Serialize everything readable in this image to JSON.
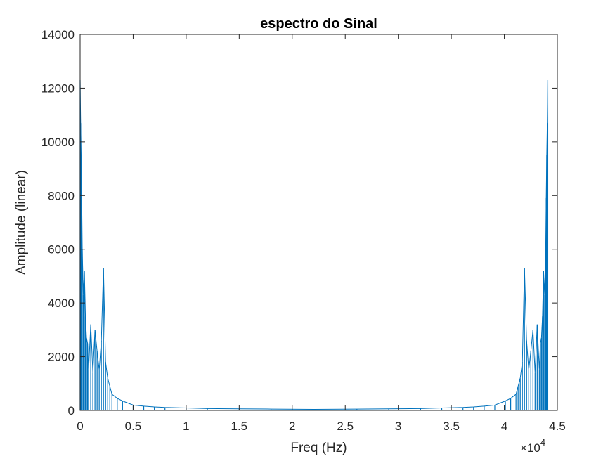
{
  "chart_data": {
    "type": "line",
    "title": "espectro do Sinal",
    "xlabel": "Freq (Hz)",
    "ylabel": "Amplitude (linear)",
    "xlim": [
      0,
      45000
    ],
    "ylim": [
      0,
      14000
    ],
    "x_ticks": [
      0,
      5000,
      10000,
      15000,
      20000,
      25000,
      30000,
      35000,
      40000,
      45000
    ],
    "x_tick_labels": [
      "0",
      "0.5",
      "1",
      "1.5",
      "2",
      "2.5",
      "3",
      "3.5",
      "4",
      "4.5"
    ],
    "x_exponent": "×10",
    "x_exponent_power": "4",
    "y_ticks": [
      0,
      2000,
      4000,
      6000,
      8000,
      10000,
      12000,
      14000
    ],
    "y_tick_labels": [
      "0",
      "2000",
      "4000",
      "6000",
      "8000",
      "10000",
      "12000",
      "14000"
    ],
    "grid": false,
    "series": [
      {
        "color": "#0072BD",
        "note_symmetric_about": 22050,
        "x": [
          0,
          50,
          100,
          150,
          200,
          300,
          400,
          500,
          600,
          700,
          800,
          1000,
          1200,
          1400,
          1600,
          1800,
          2000,
          2200,
          2400,
          2600,
          2800,
          3000,
          3500,
          4000,
          5000,
          6000,
          7000,
          8000,
          10000,
          12000,
          15000,
          18000,
          22050
        ],
        "y": [
          12300,
          10700,
          9500,
          7900,
          6000,
          4300,
          5200,
          3500,
          2700,
          2500,
          1500,
          3200,
          1400,
          3000,
          2200,
          1500,
          2600,
          5300,
          1800,
          1200,
          900,
          600,
          450,
          350,
          200,
          160,
          130,
          110,
          90,
          70,
          60,
          50,
          40
        ]
      }
    ]
  }
}
